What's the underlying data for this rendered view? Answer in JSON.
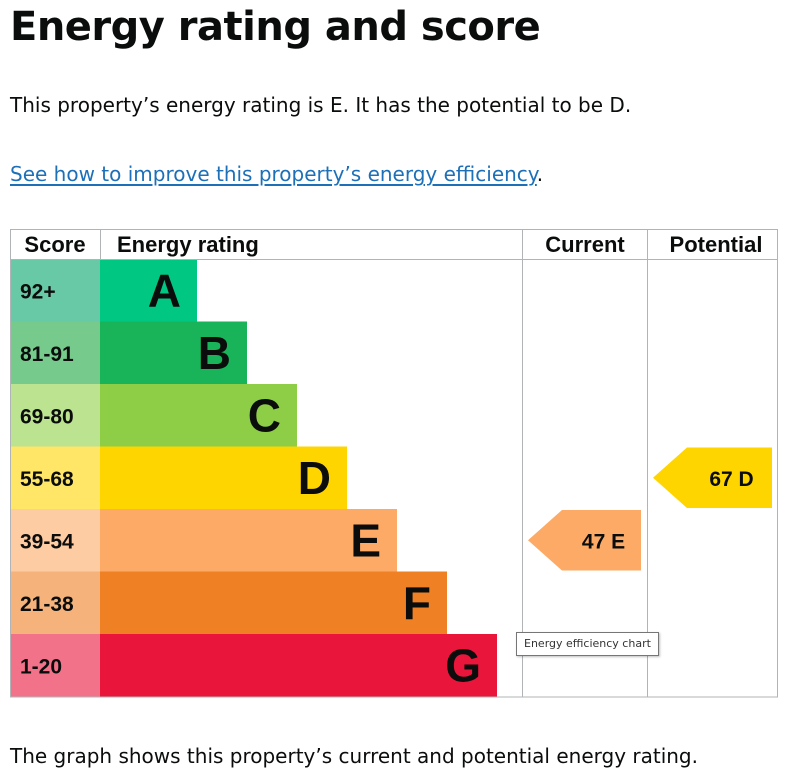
{
  "page": {
    "title": "Energy rating and score",
    "intro": "This property’s energy rating is E. It has the potential to be D.",
    "link_text": "See how to improve this property’s energy efficiency",
    "link_suffix": ".",
    "footer": "The graph shows this property’s current and potential energy rating.",
    "tooltip": "Energy efficiency chart"
  },
  "chart_data": {
    "type": "bar",
    "headers": [
      "Score",
      "Energy rating",
      "Current",
      "Potential"
    ],
    "bands": [
      {
        "letter": "A",
        "range": "92+",
        "color": "#00c781",
        "score_color": "#67c9a5"
      },
      {
        "letter": "B",
        "range": "81-91",
        "color": "#19b459",
        "score_color": "#75ca8c"
      },
      {
        "letter": "C",
        "range": "69-80",
        "color": "#8dce46",
        "score_color": "#bbe390"
      },
      {
        "letter": "D",
        "range": "55-68",
        "color": "#ffd500",
        "score_color": "#ffe666"
      },
      {
        "letter": "E",
        "range": "39-54",
        "color": "#fcaa65",
        "score_color": "#fdcca3"
      },
      {
        "letter": "F",
        "range": "21-38",
        "color": "#ef8023",
        "score_color": "#f5b37b"
      },
      {
        "letter": "G",
        "range": "1-20",
        "color": "#e9153b",
        "score_color": "#f27389"
      }
    ],
    "current": {
      "score": 47,
      "band": "E",
      "label": "47  E"
    },
    "potential": {
      "score": 67,
      "band": "D",
      "label": "67  D"
    }
  }
}
